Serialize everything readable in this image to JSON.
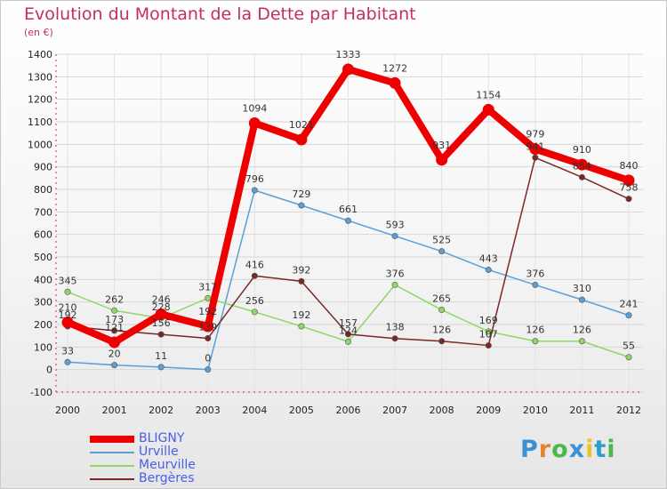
{
  "header": {
    "title": "Evolution du Montant de la Dette par Habitant",
    "unit": "(en €)"
  },
  "logo": {
    "letters": [
      "P",
      "r",
      "o",
      "x",
      "i",
      "t",
      "i"
    ],
    "colors": [
      "#3d8fd6",
      "#e8852a",
      "#4db84a",
      "#3d8fd6",
      "#e8c42a",
      "#2aa0c8",
      "#4db84a"
    ]
  },
  "chart_data": {
    "type": "line",
    "title": "Evolution du Montant de la Dette par Habitant",
    "ylabel": "(en €)",
    "xlabel": "",
    "ylim": [
      -100,
      1400
    ],
    "yticks": [
      -100,
      0,
      100,
      200,
      300,
      400,
      500,
      600,
      700,
      800,
      900,
      1000,
      1100,
      1200,
      1300,
      1400
    ],
    "x": [
      "2000",
      "2001",
      "2002",
      "2003",
      "2004",
      "2005",
      "2006",
      "2007",
      "2008",
      "2009",
      "2010",
      "2011",
      "2012"
    ],
    "legend_position": "bottom-left",
    "series": [
      {
        "name": "BLIGNY",
        "color": "#ee0000",
        "emphasis": true,
        "values": [
          210,
          121,
          246,
          192,
          1094,
          1021,
          1333,
          1272,
          931,
          1154,
          979,
          910,
          840
        ],
        "labels": [
          "210",
          "121",
          "246",
          "192",
          "1094",
          "1021",
          "1333",
          "1272",
          "931",
          "1154",
          "979",
          "910",
          "840"
        ]
      },
      {
        "name": "Urville",
        "color": "#5d9fd4",
        "emphasis": false,
        "values": [
          33,
          20,
          11,
          0,
          796,
          729,
          661,
          593,
          525,
          443,
          376,
          310,
          241
        ],
        "labels": [
          "33",
          "20",
          "11",
          "0",
          "796",
          "729",
          "661",
          "593",
          "525",
          "443",
          "376",
          "310",
          "241"
        ]
      },
      {
        "name": "Meurville",
        "color": "#8fd867",
        "emphasis": false,
        "values": [
          345,
          262,
          228,
          317,
          256,
          192,
          124,
          376,
          265,
          169,
          126,
          126,
          55
        ],
        "labels": [
          "345",
          "262",
          "228",
          "317",
          "256",
          "192",
          "124",
          "376",
          "265",
          "169",
          "126",
          "126",
          "55"
        ]
      },
      {
        "name": "Bergères",
        "color": "#7a2727",
        "emphasis": false,
        "values": [
          192,
          173,
          156,
          139,
          416,
          392,
          157,
          138,
          126,
          107,
          941,
          854,
          758
        ],
        "labels": [
          "192",
          "173",
          "156",
          "139",
          "416",
          "392",
          "157",
          "138",
          "126",
          "107",
          "941",
          "854",
          "758"
        ]
      }
    ]
  }
}
